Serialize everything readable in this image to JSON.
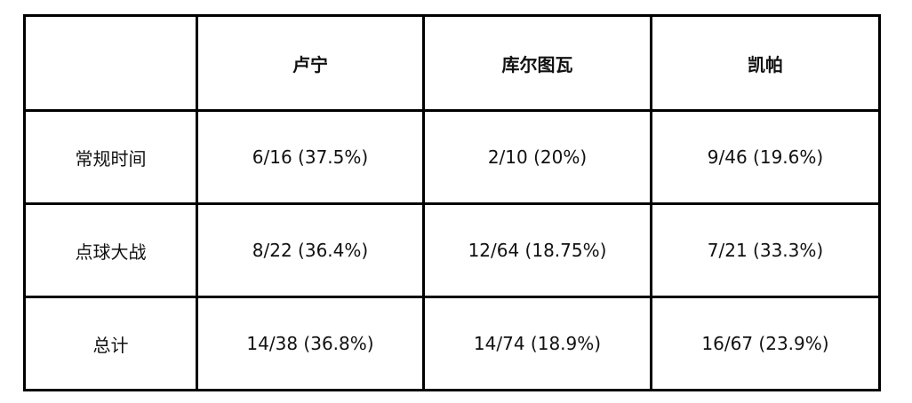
{
  "table": {
    "columns": [
      "",
      "卢宁",
      "库尔图瓦",
      "凯帕"
    ],
    "rows": [
      {
        "label": "常规时间",
        "cells": [
          "6/16 (37.5%)",
          "2/10 (20%)",
          "9/46 (19.6%)"
        ]
      },
      {
        "label": "点球大战",
        "cells": [
          "8/22 (36.4%)",
          "12/64 (18.75%)",
          "7/21 (33.3%)"
        ]
      },
      {
        "label": "总计",
        "cells": [
          "14/38 (36.8%)",
          "14/74 (18.9%)",
          "16/67 (23.9%)"
        ]
      }
    ]
  }
}
